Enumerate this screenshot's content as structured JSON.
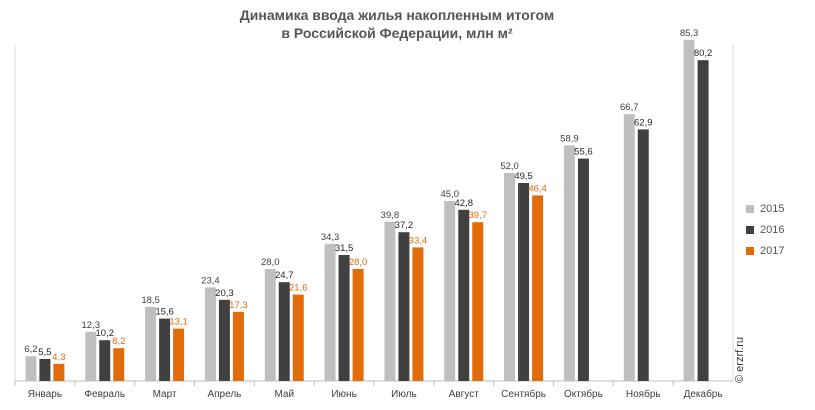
{
  "chart_data": {
    "type": "bar",
    "title_line1": "Динамика ввода жилья накопленным итогом",
    "title_line2": "в Российской  Федерации, млн м²",
    "categories": [
      "Январь",
      "Февраль",
      "Март",
      "Апрель",
      "Май",
      "Июнь",
      "Июль",
      "Август",
      "Сентябрь",
      "Октябрь",
      "Ноябрь",
      "Декабрь"
    ],
    "series": [
      {
        "name": "2015",
        "color": "#bfbfbf",
        "label_color": "#404040",
        "values": [
          6.2,
          12.3,
          18.5,
          23.4,
          28.0,
          34.3,
          39.8,
          45.0,
          52.0,
          58.9,
          66.7,
          85.3
        ]
      },
      {
        "name": "2016",
        "color": "#404040",
        "label_color": "#262626",
        "values": [
          5.5,
          10.2,
          15.6,
          20.3,
          24.7,
          31.5,
          37.2,
          42.8,
          49.5,
          55.6,
          62.9,
          80.2
        ]
      },
      {
        "name": "2017",
        "color": "#e36c0a",
        "label_color": "#e36c0a",
        "values": [
          4.3,
          8.2,
          13.1,
          17.3,
          21.6,
          28.0,
          33.4,
          39.7,
          46.4,
          null,
          null,
          null
        ]
      }
    ],
    "legend_position": "right",
    "grid": false
  },
  "watermark": "© erzrf.ru"
}
